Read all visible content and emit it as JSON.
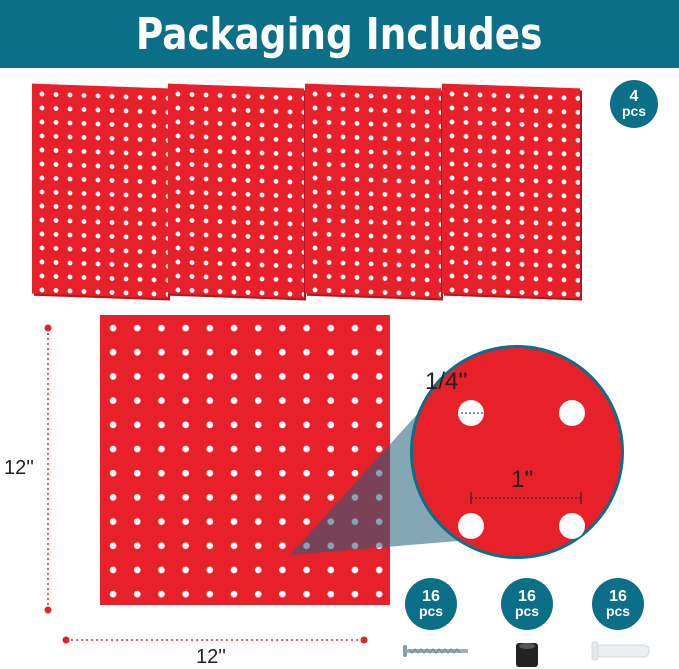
{
  "header": {
    "title": "Packaging Includes"
  },
  "panels_badge": {
    "count": "4",
    "unit": "pcs"
  },
  "detail": {
    "hole_size": "1/4''",
    "hole_spacing": "1''"
  },
  "dimensions": {
    "height": "12''",
    "width": "12''"
  },
  "hardware": [
    {
      "name": "screw",
      "count": "16",
      "unit": "pcs"
    },
    {
      "name": "spacer",
      "count": "16",
      "unit": "pcs"
    },
    {
      "name": "wall-anchor",
      "count": "16",
      "unit": "pcs"
    }
  ],
  "colors": {
    "brand": "#0b6f87",
    "panel": "#e8202a"
  }
}
